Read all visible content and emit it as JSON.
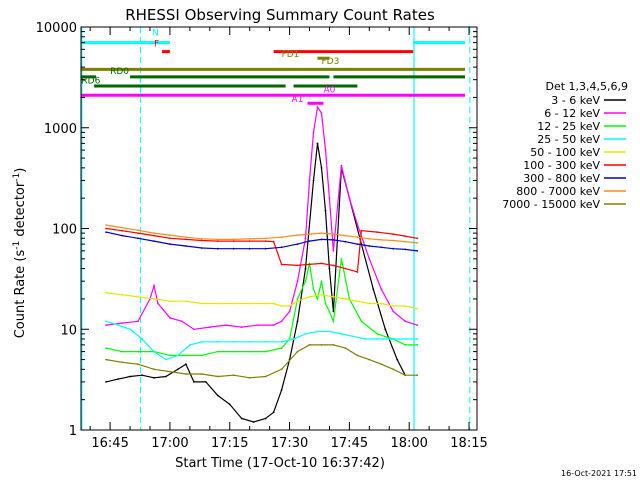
{
  "chart_data": {
    "type": "line",
    "title": "RHESSI Observing Summary Count Rates",
    "xlabel": "Start Time (17-Oct-10 16:37:42)",
    "ylabel_main": "Count Rate (s",
    "ylabel_sup1": "-1",
    "ylabel_mid": " detector",
    "ylabel_sup2": "-1",
    "ylabel_end": ")",
    "y_scale": "log",
    "ylim": [
      1,
      10000
    ],
    "xlim": [
      "16:37:42",
      "18:17"
    ],
    "x_tick_labels": [
      "16:45",
      "17:00",
      "17:15",
      "17:30",
      "17:45",
      "18:00",
      "18:15"
    ],
    "x_tick_minutes": [
      45,
      60,
      75,
      90,
      105,
      120,
      135
    ],
    "y_tick_labels": [
      "1",
      "10",
      "100",
      "1000",
      "10000"
    ],
    "y_tick_values": [
      1,
      10,
      100,
      1000,
      10000
    ],
    "legend_title": "Det 1,3,4,5,6,9",
    "legend_position": "right",
    "series": [
      {
        "name": "3 - 6 keV",
        "color": "#000000",
        "points": [
          [
            44,
            3
          ],
          [
            47,
            3.2
          ],
          [
            50,
            3.4
          ],
          [
            53,
            3.5
          ],
          [
            56,
            3.3
          ],
          [
            59,
            3.4
          ],
          [
            62,
            4
          ],
          [
            64,
            4.5
          ],
          [
            66,
            3
          ],
          [
            69,
            3
          ],
          [
            72,
            2.2
          ],
          [
            75,
            1.8
          ],
          [
            78,
            1.3
          ],
          [
            81,
            1.2
          ],
          [
            84,
            1.3
          ],
          [
            86,
            1.5
          ],
          [
            88,
            2.5
          ],
          [
            90,
            5
          ],
          [
            92,
            12
          ],
          [
            94,
            40
          ],
          [
            96,
            300
          ],
          [
            97,
            700
          ],
          [
            98,
            400
          ],
          [
            99,
            150
          ],
          [
            100,
            40
          ],
          [
            101,
            15
          ],
          [
            103,
            400
          ],
          [
            105,
            200
          ],
          [
            108,
            70
          ],
          [
            111,
            25
          ],
          [
            114,
            10
          ],
          [
            117,
            5
          ],
          [
            119,
            3.5
          ]
        ]
      },
      {
        "name": "6 - 12 keV",
        "color": "#ff00ff",
        "points": [
          [
            44,
            11
          ],
          [
            48,
            11.5
          ],
          [
            52,
            12
          ],
          [
            55,
            20
          ],
          [
            56,
            27
          ],
          [
            57,
            18
          ],
          [
            60,
            13
          ],
          [
            63,
            12
          ],
          [
            66,
            10
          ],
          [
            70,
            10.5
          ],
          [
            74,
            11
          ],
          [
            78,
            10.5
          ],
          [
            82,
            11
          ],
          [
            86,
            11
          ],
          [
            88,
            12
          ],
          [
            90,
            15
          ],
          [
            92,
            30
          ],
          [
            94,
            80
          ],
          [
            95,
            300
          ],
          [
            96,
            900
          ],
          [
            97,
            1600
          ],
          [
            98,
            1400
          ],
          [
            99,
            600
          ],
          [
            100,
            200
          ],
          [
            101,
            60
          ],
          [
            103,
            420
          ],
          [
            105,
            200
          ],
          [
            107,
            110
          ],
          [
            110,
            50
          ],
          [
            113,
            25
          ],
          [
            116,
            15
          ],
          [
            119,
            12
          ],
          [
            122,
            11
          ]
        ]
      },
      {
        "name": "12 - 25 keV",
        "color": "#00ff00",
        "points": [
          [
            44,
            6.5
          ],
          [
            48,
            6
          ],
          [
            52,
            6
          ],
          [
            56,
            6
          ],
          [
            60,
            5.5
          ],
          [
            64,
            5.5
          ],
          [
            68,
            5.5
          ],
          [
            72,
            6
          ],
          [
            76,
            6
          ],
          [
            80,
            6
          ],
          [
            84,
            6
          ],
          [
            88,
            6.5
          ],
          [
            90,
            8
          ],
          [
            92,
            20
          ],
          [
            94,
            30
          ],
          [
            95,
            45
          ],
          [
            96,
            25
          ],
          [
            97,
            20
          ],
          [
            98,
            30
          ],
          [
            99,
            18
          ],
          [
            100,
            15
          ],
          [
            101,
            12
          ],
          [
            103,
            50
          ],
          [
            105,
            20
          ],
          [
            108,
            12
          ],
          [
            112,
            9
          ],
          [
            116,
            8
          ],
          [
            119,
            7
          ],
          [
            122,
            7
          ]
        ]
      },
      {
        "name": "25 - 50 keV",
        "color": "#00ffff",
        "points": [
          [
            44,
            12
          ],
          [
            47,
            11
          ],
          [
            50,
            10
          ],
          [
            53,
            8
          ],
          [
            56,
            6
          ],
          [
            59,
            5
          ],
          [
            62,
            5.5
          ],
          [
            65,
            7
          ],
          [
            68,
            7.5
          ],
          [
            72,
            7.5
          ],
          [
            76,
            7.5
          ],
          [
            80,
            7.5
          ],
          [
            84,
            7.5
          ],
          [
            88,
            7.5
          ],
          [
            91,
            8
          ],
          [
            94,
            9
          ],
          [
            97,
            9.5
          ],
          [
            100,
            9.5
          ],
          [
            103,
            9
          ],
          [
            106,
            8.5
          ],
          [
            109,
            8
          ],
          [
            112,
            8
          ],
          [
            116,
            8
          ],
          [
            119,
            8
          ],
          [
            122,
            8
          ]
        ]
      },
      {
        "name": "50 - 100 keV",
        "color": "#e6e600",
        "points": [
          [
            44,
            23
          ],
          [
            48,
            22
          ],
          [
            52,
            21
          ],
          [
            56,
            20
          ],
          [
            60,
            19
          ],
          [
            64,
            19
          ],
          [
            68,
            18
          ],
          [
            72,
            18
          ],
          [
            76,
            18
          ],
          [
            80,
            18
          ],
          [
            84,
            18
          ],
          [
            86,
            18
          ],
          [
            88,
            17
          ],
          [
            90,
            17
          ],
          [
            92,
            19
          ],
          [
            95,
            21
          ],
          [
            98,
            22
          ],
          [
            101,
            21
          ],
          [
            104,
            20
          ],
          [
            107,
            19
          ],
          [
            110,
            18
          ],
          [
            113,
            18
          ],
          [
            116,
            17
          ],
          [
            119,
            17
          ],
          [
            122,
            16
          ]
        ]
      },
      {
        "name": "100 - 300 keV",
        "color": "#ff0000",
        "points": [
          [
            44,
            100
          ],
          [
            48,
            95
          ],
          [
            52,
            90
          ],
          [
            56,
            85
          ],
          [
            60,
            80
          ],
          [
            64,
            78
          ],
          [
            68,
            76
          ],
          [
            72,
            75
          ],
          [
            76,
            75
          ],
          [
            80,
            75
          ],
          [
            84,
            75
          ],
          [
            86,
            74
          ],
          [
            88,
            44
          ],
          [
            92,
            43
          ],
          [
            95,
            44
          ],
          [
            98,
            45
          ],
          [
            101,
            43
          ],
          [
            104,
            40
          ],
          [
            107,
            37
          ],
          [
            108,
            95
          ],
          [
            112,
            92
          ],
          [
            116,
            88
          ],
          [
            119,
            84
          ],
          [
            122,
            80
          ]
        ]
      },
      {
        "name": "300 - 800 keV",
        "color": "#0000cc",
        "points": [
          [
            44,
            92
          ],
          [
            48,
            85
          ],
          [
            52,
            80
          ],
          [
            56,
            75
          ],
          [
            60,
            70
          ],
          [
            64,
            67
          ],
          [
            68,
            64
          ],
          [
            72,
            63
          ],
          [
            76,
            63
          ],
          [
            80,
            63
          ],
          [
            84,
            63
          ],
          [
            88,
            65
          ],
          [
            92,
            70
          ],
          [
            95,
            75
          ],
          [
            98,
            78
          ],
          [
            101,
            77
          ],
          [
            104,
            74
          ],
          [
            107,
            70
          ],
          [
            110,
            67
          ],
          [
            113,
            65
          ],
          [
            116,
            63
          ],
          [
            119,
            62
          ],
          [
            122,
            60
          ]
        ]
      },
      {
        "name": "800 - 7000 keV",
        "color": "#ff8c1a",
        "points": [
          [
            44,
            108
          ],
          [
            48,
            102
          ],
          [
            52,
            96
          ],
          [
            56,
            90
          ],
          [
            60,
            86
          ],
          [
            64,
            82
          ],
          [
            68,
            79
          ],
          [
            72,
            78
          ],
          [
            76,
            78
          ],
          [
            80,
            79
          ],
          [
            84,
            80
          ],
          [
            88,
            82
          ],
          [
            92,
            86
          ],
          [
            95,
            88
          ],
          [
            98,
            90
          ],
          [
            101,
            88
          ],
          [
            104,
            85
          ],
          [
            107,
            82
          ],
          [
            110,
            79
          ],
          [
            113,
            77
          ],
          [
            116,
            76
          ],
          [
            119,
            74
          ],
          [
            122,
            72
          ]
        ]
      },
      {
        "name": "7000 - 15000 keV",
        "color": "#808000",
        "points": [
          [
            44,
            5
          ],
          [
            48,
            4.7
          ],
          [
            52,
            4.5
          ],
          [
            56,
            4
          ],
          [
            60,
            3.8
          ],
          [
            64,
            3.6
          ],
          [
            68,
            3.6
          ],
          [
            72,
            3.4
          ],
          [
            76,
            3.5
          ],
          [
            80,
            3.3
          ],
          [
            84,
            3.4
          ],
          [
            88,
            4
          ],
          [
            92,
            6
          ],
          [
            95,
            7
          ],
          [
            98,
            7
          ],
          [
            101,
            7
          ],
          [
            104,
            6.5
          ],
          [
            107,
            5.5
          ],
          [
            110,
            5
          ],
          [
            113,
            4.5
          ],
          [
            116,
            4
          ],
          [
            119,
            3.5
          ],
          [
            122,
            3.5
          ]
        ]
      }
    ],
    "flag_bars": [
      {
        "label": "N",
        "color": "#00ffff",
        "level": 7000,
        "segments": [
          [
            37.7,
            60
          ],
          [
            121,
            134
          ]
        ]
      },
      {
        "label": "F",
        "color": "#ff0000",
        "level": 5700,
        "segments": [
          [
            58,
            60
          ]
        ]
      },
      {
        "label": "FD1",
        "color": "#ff0000",
        "level": 5700,
        "segments": [
          [
            86,
            121
          ]
        ]
      },
      {
        "label": "FD3",
        "color": "#808000",
        "level": 4900,
        "segments": [
          [
            97,
            100
          ]
        ]
      },
      {
        "label": "",
        "color": "#808000",
        "level": 3800,
        "segments": [
          [
            37.7,
            134
          ]
        ]
      },
      {
        "label": "RD0",
        "color": "#006600",
        "level": 3200,
        "segments": [
          [
            37.7,
            41.5
          ],
          [
            50,
            100
          ],
          [
            101,
            134
          ]
        ]
      },
      {
        "label": "RD6",
        "color": "#006600",
        "level": 2600,
        "segments": [
          [
            41,
            89
          ],
          [
            91,
            107
          ]
        ]
      },
      {
        "label": "A0",
        "color": "#ff00ff",
        "level": 2100,
        "segments": [
          [
            37.7,
            134
          ]
        ]
      },
      {
        "label": "A1",
        "color": "#ff00ff",
        "level": 1750,
        "segments": [
          [
            94.5,
            98.5
          ]
        ]
      }
    ],
    "flag_labels": [
      {
        "text": "N",
        "color": "#00ffff",
        "minute": 55.5,
        "level": 8200
      },
      {
        "text": "F",
        "color": "#ff0000",
        "minute": 56,
        "level": 6400
      },
      {
        "text": "FD1",
        "color": "#808000",
        "minute": 88,
        "level": 5050
      },
      {
        "text": "FD3",
        "color": "#808000",
        "minute": 98,
        "level": 4300
      },
      {
        "text": "RD0",
        "color": "#006600",
        "minute": 45,
        "level": 3400
      },
      {
        "text": "RD6",
        "color": "#006600",
        "minute": 37.8,
        "level": 2750
      },
      {
        "text": "A0",
        "color": "#ff00ff",
        "minute": 98.5,
        "level": 2250
      },
      {
        "text": "A1",
        "color": "#ff00ff",
        "minute": 90.5,
        "level": 1800
      }
    ],
    "night_lines": {
      "color": "#00ffff",
      "solid_minutes": [
        37.9,
        121.2
      ],
      "dashed_minutes": [
        52.6,
        135.2
      ]
    },
    "timestamp": "16-Oct-2021 17:51"
  }
}
